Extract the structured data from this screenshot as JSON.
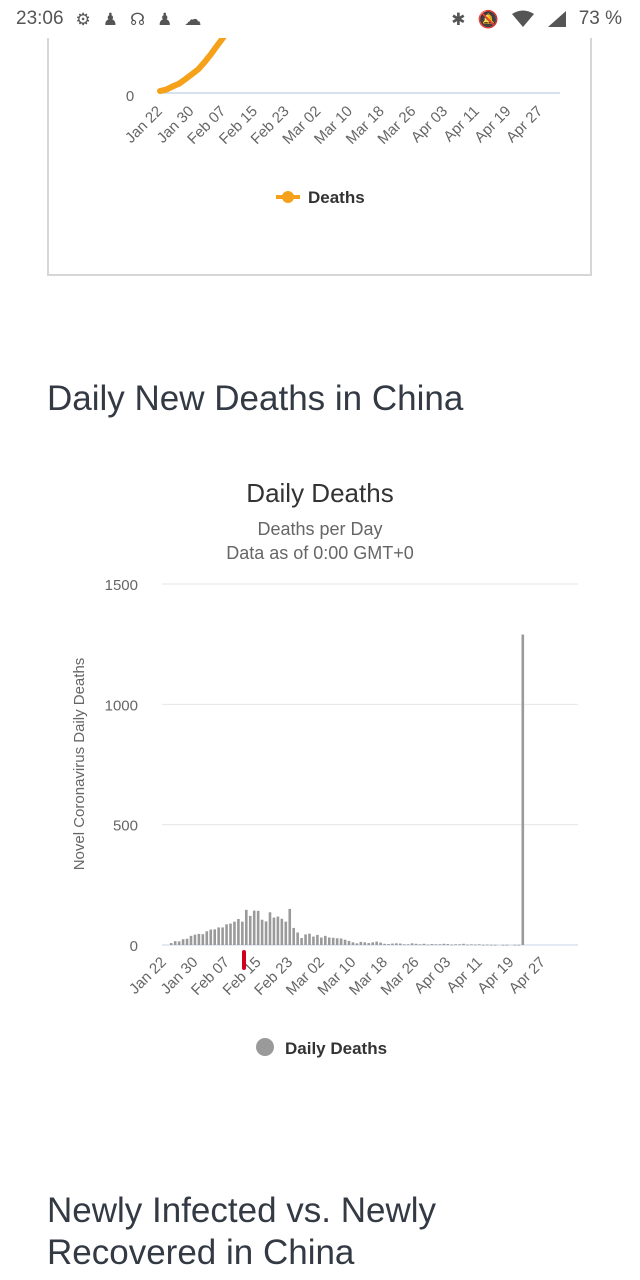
{
  "status_bar": {
    "time": "23:06",
    "battery": "73 %",
    "left_icons": [
      "settings-icon",
      "person-icon",
      "headset-icon",
      "person-icon",
      "cloud-icon"
    ],
    "right_icons": [
      "bluetooth-icon",
      "mute-icon",
      "wifi-icon",
      "signal-icon"
    ]
  },
  "sections": {
    "daily_title": "Daily New Deaths in China",
    "newly_title": "Newly Infected vs. Newly Recovered in China"
  },
  "colors": {
    "deaths_line": "#f5a11a",
    "daily_bar": "#9a9a9a",
    "marker": "#d0021b"
  },
  "chart_data": [
    {
      "type": "line",
      "ytick_visible": "0",
      "xticks": [
        "Jan 22",
        "Jan 30",
        "Feb 07",
        "Feb 15",
        "Feb 23",
        "Mar 02",
        "Mar 10",
        "Mar 18",
        "Mar 26",
        "Apr 03",
        "Apr 11",
        "Apr 19",
        "Apr 27"
      ],
      "series": [
        {
          "name": "Deaths",
          "values": [
            17,
            25,
            41,
            56,
            80,
            106,
            132,
            170,
            213,
            259,
            304
          ]
        }
      ],
      "legend": "bottom-center"
    },
    {
      "type": "bar",
      "title": "Daily Deaths",
      "subtitle": "Deaths per Day",
      "subtitle2": "Data as of 0:00 GMT+0",
      "ylabel": "Novel Coronavirus Daily Deaths",
      "ylim": [
        0,
        1500
      ],
      "yticks": [
        "0",
        "500",
        "1000",
        "1500"
      ],
      "xticks": [
        "Jan 22",
        "Jan 30",
        "Feb 07",
        "Feb 15",
        "Feb 23",
        "Mar 02",
        "Mar 10",
        "Mar 18",
        "Mar 26",
        "Apr 03",
        "Apr 11",
        "Apr 19",
        "Apr 27"
      ],
      "x_start": "Jan 22",
      "values": [
        0,
        8,
        16,
        15,
        24,
        26,
        38,
        43,
        46,
        45,
        57,
        64,
        65,
        73,
        73,
        86,
        89,
        97,
        108,
        97,
        146,
        121,
        143,
        142,
        105,
        98,
        136,
        114,
        118,
        109,
        97,
        150,
        71,
        52,
        29,
        44,
        47,
        35,
        42,
        31,
        38,
        31,
        30,
        28,
        27,
        22,
        17,
        11,
        7,
        13,
        11,
        8,
        11,
        14,
        10,
        5,
        4,
        6,
        7,
        6,
        3,
        3,
        7,
        5,
        3,
        5,
        2,
        4,
        3,
        3,
        5,
        4,
        2,
        3,
        3,
        5,
        2,
        3,
        2,
        3,
        1,
        2,
        1,
        1,
        0,
        1,
        1,
        0,
        1,
        1,
        1290,
        0,
        0,
        0,
        0,
        0,
        0,
        0,
        0,
        0,
        0,
        0,
        0,
        0,
        0,
        0,
        0
      ],
      "legend": "Daily Deaths",
      "legend_position": "bottom-center"
    }
  ]
}
